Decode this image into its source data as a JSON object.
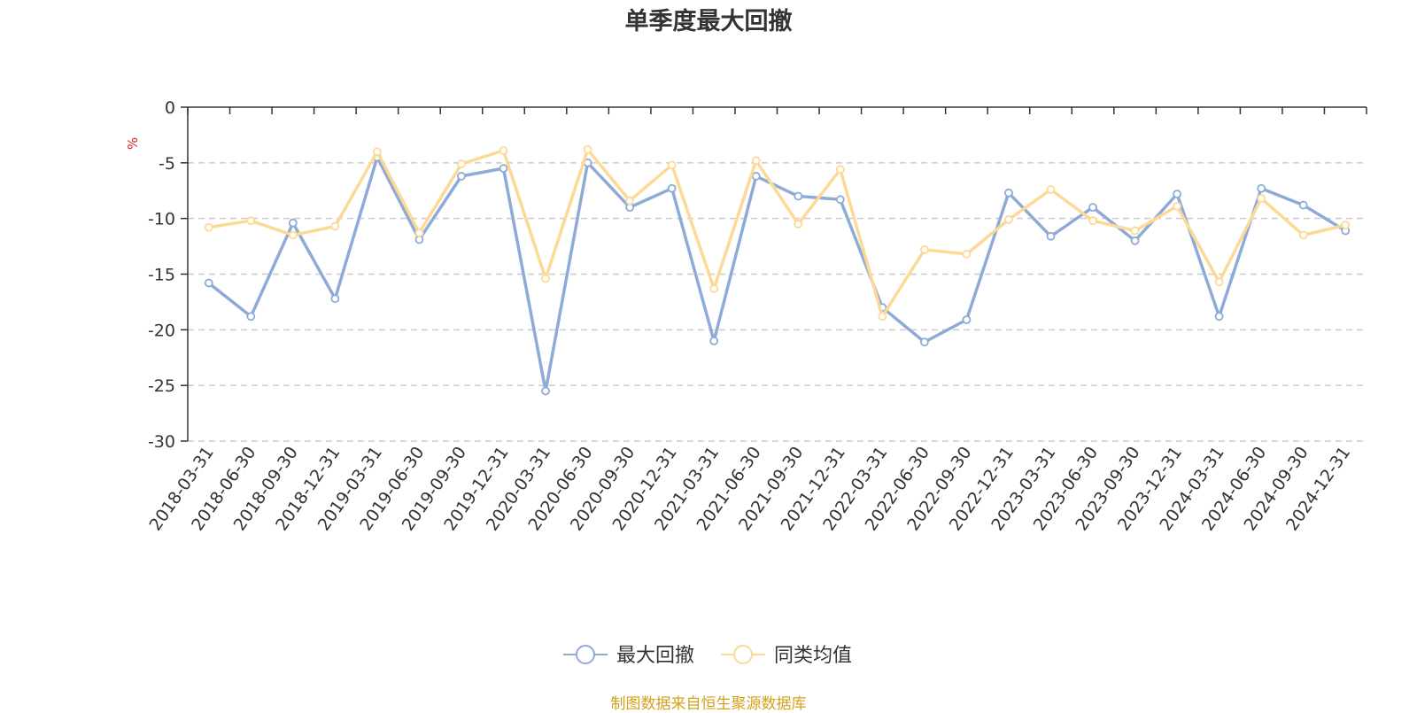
{
  "chart_data": {
    "type": "line",
    "title": "单季度最大回撤",
    "ylabel": "%",
    "ylim": [
      -30,
      0
    ],
    "yticks": [
      0,
      -5,
      -10,
      -15,
      -20,
      -25,
      -30
    ],
    "grid": true,
    "legend_position": "bottom-center",
    "categories": [
      "2018-03-31",
      "2018-06-30",
      "2018-09-30",
      "2018-12-31",
      "2019-03-31",
      "2019-06-30",
      "2019-09-30",
      "2019-12-31",
      "2020-03-31",
      "2020-06-30",
      "2020-09-30",
      "2020-12-31",
      "2021-03-31",
      "2021-06-30",
      "2021-09-30",
      "2021-12-31",
      "2022-03-31",
      "2022-06-30",
      "2022-09-30",
      "2022-12-31",
      "2023-03-31",
      "2023-06-30",
      "2023-09-30",
      "2023-12-31",
      "2024-03-31",
      "2024-06-30",
      "2024-09-30",
      "2024-12-31"
    ],
    "series": [
      {
        "name": "最大回撤",
        "color": "#8eabd8",
        "values": [
          -15.8,
          -18.8,
          -10.4,
          -17.2,
          -4.5,
          -11.9,
          -6.2,
          -5.5,
          -25.5,
          -5.0,
          -9.0,
          -7.3,
          -21.0,
          -6.2,
          -8.0,
          -8.3,
          -18.0,
          -21.1,
          -19.1,
          -7.7,
          -11.6,
          -9.0,
          -12.0,
          -7.8,
          -18.8,
          -7.3,
          -8.8,
          -11.1
        ]
      },
      {
        "name": "同类均值",
        "color": "#fdd996",
        "values": [
          -10.8,
          -10.2,
          -11.5,
          -10.7,
          -4.0,
          -11.3,
          -5.1,
          -3.9,
          -15.4,
          -3.8,
          -8.4,
          -5.2,
          -16.3,
          -4.8,
          -10.5,
          -5.6,
          -18.8,
          -12.8,
          -13.2,
          -10.1,
          -7.4,
          -10.2,
          -11.1,
          -8.9,
          -15.7,
          -8.2,
          -11.5,
          -10.6
        ]
      }
    ]
  },
  "source_text": "制图数据来自恒生聚源数据库",
  "colors": {
    "axis": "#333333",
    "grid": "#cccccc",
    "unit": "#e02020",
    "source": "#d4a21a"
  }
}
